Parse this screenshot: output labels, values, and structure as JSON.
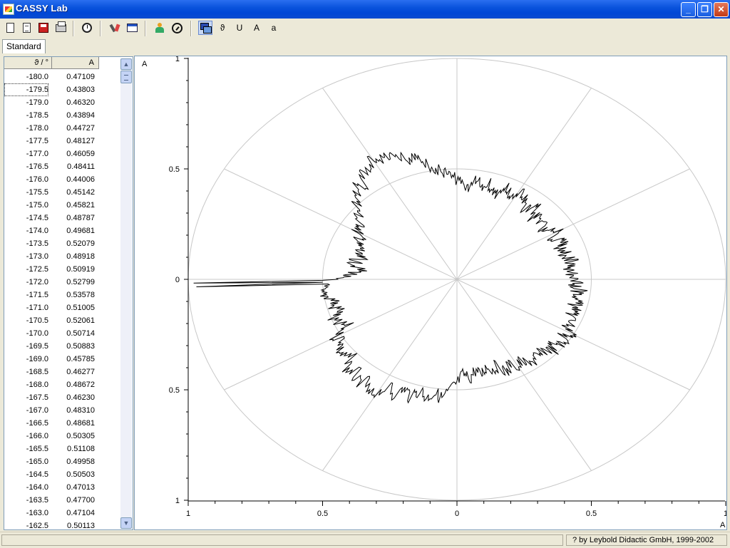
{
  "window": {
    "title": "CASSY Lab"
  },
  "tabs": [
    {
      "label": "Standard"
    }
  ],
  "toolbar": {
    "buttons": [
      {
        "name": "new-icon"
      },
      {
        "name": "open-icon"
      },
      {
        "name": "save-icon"
      },
      {
        "name": "print-icon"
      },
      {
        "name": "measure-clock-icon"
      },
      {
        "name": "settings-icon"
      },
      {
        "name": "display-icon"
      },
      {
        "name": "person-icon"
      },
      {
        "name": "gauge-icon"
      },
      {
        "name": "layers-icon"
      }
    ],
    "text_buttons": {
      "theta": "ϑ",
      "u": "U",
      "a_upper": "A",
      "a_lower": "a"
    }
  },
  "table": {
    "headers": [
      "ϑ / °",
      "A"
    ],
    "rows": [
      [
        "-180.0",
        "0.47109"
      ],
      [
        "-179.5",
        "0.43803"
      ],
      [
        "-179.0",
        "0.46320"
      ],
      [
        "-178.5",
        "0.43894"
      ],
      [
        "-178.0",
        "0.44727"
      ],
      [
        "-177.5",
        "0.48127"
      ],
      [
        "-177.0",
        "0.46059"
      ],
      [
        "-176.5",
        "0.48411"
      ],
      [
        "-176.0",
        "0.44006"
      ],
      [
        "-175.5",
        "0.45142"
      ],
      [
        "-175.0",
        "0.45821"
      ],
      [
        "-174.5",
        "0.48787"
      ],
      [
        "-174.0",
        "0.49681"
      ],
      [
        "-173.5",
        "0.52079"
      ],
      [
        "-173.0",
        "0.48918"
      ],
      [
        "-172.5",
        "0.50919"
      ],
      [
        "-172.0",
        "0.52799"
      ],
      [
        "-171.5",
        "0.53578"
      ],
      [
        "-171.0",
        "0.51005"
      ],
      [
        "-170.5",
        "0.52061"
      ],
      [
        "-170.0",
        "0.50714"
      ],
      [
        "-169.5",
        "0.50883"
      ],
      [
        "-169.0",
        "0.45785"
      ],
      [
        "-168.5",
        "0.46277"
      ],
      [
        "-168.0",
        "0.48672"
      ],
      [
        "-167.5",
        "0.46230"
      ],
      [
        "-167.0",
        "0.48310"
      ],
      [
        "-166.5",
        "0.48681"
      ],
      [
        "-166.0",
        "0.50305"
      ],
      [
        "-165.5",
        "0.51108"
      ],
      [
        "-165.0",
        "0.49958"
      ],
      [
        "-164.5",
        "0.50503"
      ],
      [
        "-164.0",
        "0.47013"
      ],
      [
        "-163.5",
        "0.47700"
      ],
      [
        "-163.0",
        "0.47104"
      ],
      [
        "-162.5",
        "0.50113"
      ]
    ],
    "selected_row": 1
  },
  "chart_data": {
    "type": "line",
    "polar": true,
    "xlabel": "A",
    "ylabel": "A",
    "xlim": [
      -1,
      1
    ],
    "ylim": [
      -1,
      1
    ],
    "x_ticks": [
      {
        "value": -1,
        "label": "1"
      },
      {
        "value": -0.5,
        "label": "0.5"
      },
      {
        "value": 0,
        "label": "0"
      },
      {
        "value": 0.5,
        "label": "0.5"
      },
      {
        "value": 1,
        "label": "1"
      }
    ],
    "y_ticks": [
      {
        "value": 1,
        "label": "1"
      },
      {
        "value": 0.5,
        "label": "0.5"
      },
      {
        "value": 0,
        "label": "0"
      },
      {
        "value": -0.5,
        "label": "0.5"
      },
      {
        "value": -1,
        "label": "1"
      }
    ],
    "grid": {
      "circles": [
        0.5,
        1.0
      ],
      "spoke_step_deg": 30
    },
    "series": [
      {
        "angle_step_deg": 3,
        "points": [
          {
            "theta": 0,
            "r": 0.45
          },
          {
            "theta": 3,
            "r": 0.43
          },
          {
            "theta": 6,
            "r": 0.42
          },
          {
            "theta": 9,
            "r": 0.44
          },
          {
            "theta": 12,
            "r": 0.43
          },
          {
            "theta": 15,
            "r": 0.41
          },
          {
            "theta": 18,
            "r": 0.42
          },
          {
            "theta": 21,
            "r": 0.41
          },
          {
            "theta": 24,
            "r": 0.44
          },
          {
            "theta": 27,
            "r": 0.4
          },
          {
            "theta": 30,
            "r": 0.43
          },
          {
            "theta": 33,
            "r": 0.41
          },
          {
            "theta": 36,
            "r": 0.39
          },
          {
            "theta": 39,
            "r": 0.4
          },
          {
            "theta": 42,
            "r": 0.43
          },
          {
            "theta": 45,
            "r": 0.4
          },
          {
            "theta": 48,
            "r": 0.44
          },
          {
            "theta": 51,
            "r": 0.41
          },
          {
            "theta": 54,
            "r": 0.42
          },
          {
            "theta": 57,
            "r": 0.47
          },
          {
            "theta": 60,
            "r": 0.45
          },
          {
            "theta": 63,
            "r": 0.43
          },
          {
            "theta": 66,
            "r": 0.47
          },
          {
            "theta": 69,
            "r": 0.42
          },
          {
            "theta": 72,
            "r": 0.41
          },
          {
            "theta": 75,
            "r": 0.46
          },
          {
            "theta": 78,
            "r": 0.43
          },
          {
            "theta": 81,
            "r": 0.46
          },
          {
            "theta": 84,
            "r": 0.4
          },
          {
            "theta": 87,
            "r": 0.42
          },
          {
            "theta": 90,
            "r": 0.45
          },
          {
            "theta": 93,
            "r": 0.47
          },
          {
            "theta": 96,
            "r": 0.49
          },
          {
            "theta": 99,
            "r": 0.5
          },
          {
            "theta": 102,
            "r": 0.53
          },
          {
            "theta": 105,
            "r": 0.58
          },
          {
            "theta": 108,
            "r": 0.56
          },
          {
            "theta": 111,
            "r": 0.6
          },
          {
            "theta": 114,
            "r": 0.63
          },
          {
            "theta": 117,
            "r": 0.61
          },
          {
            "theta": 120,
            "r": 0.64
          },
          {
            "theta": 123,
            "r": 0.6
          },
          {
            "theta": 126,
            "r": 0.59
          },
          {
            "theta": 129,
            "r": 0.55
          },
          {
            "theta": 132,
            "r": 0.56
          },
          {
            "theta": 135,
            "r": 0.52
          },
          {
            "theta": 138,
            "r": 0.5
          },
          {
            "theta": 141,
            "r": 0.47
          },
          {
            "theta": 144,
            "r": 0.46
          },
          {
            "theta": 147,
            "r": 0.42
          },
          {
            "theta": 150,
            "r": 0.43
          },
          {
            "theta": 153,
            "r": 0.4
          },
          {
            "theta": 156,
            "r": 0.41
          },
          {
            "theta": 159,
            "r": 0.38
          },
          {
            "theta": 162,
            "r": 0.4
          },
          {
            "theta": 165,
            "r": 0.37
          },
          {
            "theta": 168,
            "r": 0.39
          },
          {
            "theta": 171,
            "r": 0.38
          },
          {
            "theta": 174,
            "r": 0.36
          },
          {
            "theta": 177,
            "r": 0.4
          },
          {
            "theta": 180,
            "r": 0.47
          },
          {
            "theta": 183,
            "r": 0.5
          },
          {
            "theta": 186,
            "r": 0.52
          },
          {
            "theta": 189,
            "r": 0.49
          },
          {
            "theta": 192,
            "r": 0.46
          },
          {
            "theta": 195,
            "r": 0.48
          },
          {
            "theta": 198,
            "r": 0.45
          },
          {
            "theta": 201,
            "r": 0.5
          },
          {
            "theta": 204,
            "r": 0.49
          },
          {
            "theta": 207,
            "r": 0.46
          },
          {
            "theta": 210,
            "r": 0.52
          },
          {
            "theta": 213,
            "r": 0.5
          },
          {
            "theta": 216,
            "r": 0.54
          },
          {
            "theta": 219,
            "r": 0.55
          },
          {
            "theta": 222,
            "r": 0.53
          },
          {
            "theta": 225,
            "r": 0.58
          },
          {
            "theta": 228,
            "r": 0.56
          },
          {
            "theta": 231,
            "r": 0.6
          },
          {
            "theta": 234,
            "r": 0.57
          },
          {
            "theta": 237,
            "r": 0.62
          },
          {
            "theta": 240,
            "r": 0.59
          },
          {
            "theta": 243,
            "r": 0.55
          },
          {
            "theta": 246,
            "r": 0.57
          },
          {
            "theta": 249,
            "r": 0.53
          },
          {
            "theta": 252,
            "r": 0.56
          },
          {
            "theta": 255,
            "r": 0.52
          },
          {
            "theta": 258,
            "r": 0.55
          },
          {
            "theta": 261,
            "r": 0.52
          },
          {
            "theta": 264,
            "r": 0.54
          },
          {
            "theta": 267,
            "r": 0.5
          },
          {
            "theta": 270,
            "r": 0.47
          },
          {
            "theta": 273,
            "r": 0.43
          },
          {
            "theta": 276,
            "r": 0.45
          },
          {
            "theta": 279,
            "r": 0.42
          },
          {
            "theta": 282,
            "r": 0.44
          },
          {
            "theta": 285,
            "r": 0.41
          },
          {
            "theta": 288,
            "r": 0.43
          },
          {
            "theta": 291,
            "r": 0.42
          },
          {
            "theta": 294,
            "r": 0.46
          },
          {
            "theta": 297,
            "r": 0.43
          },
          {
            "theta": 300,
            "r": 0.46
          },
          {
            "theta": 303,
            "r": 0.44
          },
          {
            "theta": 306,
            "r": 0.48
          },
          {
            "theta": 309,
            "r": 0.45
          },
          {
            "theta": 312,
            "r": 0.47
          },
          {
            "theta": 315,
            "r": 0.45
          },
          {
            "theta": 318,
            "r": 0.48
          },
          {
            "theta": 321,
            "r": 0.46
          },
          {
            "theta": 324,
            "r": 0.5
          },
          {
            "theta": 327,
            "r": 0.47
          },
          {
            "theta": 330,
            "r": 0.49
          },
          {
            "theta": 333,
            "r": 0.46
          },
          {
            "theta": 336,
            "r": 0.48
          },
          {
            "theta": 339,
            "r": 0.45
          },
          {
            "theta": 342,
            "r": 0.47
          },
          {
            "theta": 345,
            "r": 0.45
          },
          {
            "theta": 348,
            "r": 0.47
          },
          {
            "theta": 351,
            "r": 0.44
          },
          {
            "theta": 354,
            "r": 0.46
          },
          {
            "theta": 357,
            "r": 0.44
          }
        ],
        "spike": [
          {
            "theta": 180.5,
            "r": 0.5
          },
          {
            "theta": 181.0,
            "r": 0.98
          },
          {
            "theta": 181.5,
            "r": 0.5
          },
          {
            "theta": 182.0,
            "r": 0.97
          },
          {
            "theta": 182.5,
            "r": 0.48
          }
        ]
      }
    ]
  },
  "status": {
    "left": "",
    "right": "? by Leybold Didactic GmbH, 1999-2002"
  },
  "colors": {
    "titlebar": "#0a53dc",
    "grid": "#c8c8c8",
    "trace": "#000000"
  }
}
